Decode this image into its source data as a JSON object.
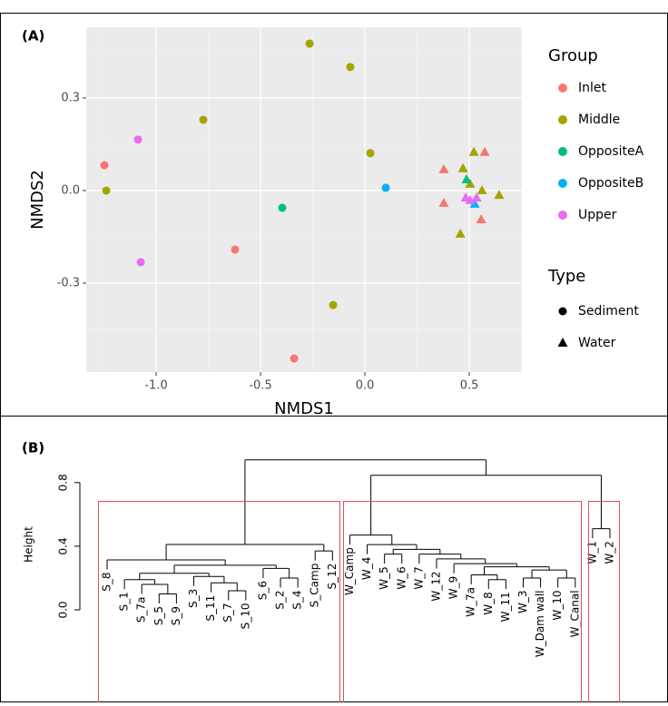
{
  "chart_data": [
    {
      "type": "scatter",
      "panel_label": "(A)",
      "x_label": "NMDS1",
      "y_label": "NMDS2",
      "xlim": [
        -1.335,
        0.752
      ],
      "ylim": [
        -0.588,
        0.529
      ],
      "xticks": [
        {
          "value": -1.0,
          "label": "-1.0"
        },
        -0.5,
        {
          "value": 0,
          "label": "0.0"
        },
        0.5
      ],
      "yticks": [
        -0.3,
        {
          "value": 0,
          "label": "0.0"
        },
        0.3
      ],
      "grid": true,
      "legend_title": "Group",
      "type_legend": {
        "title": "Type",
        "entries": [
          {
            "name": "Sediment",
            "shape": "circle"
          },
          {
            "name": "Water",
            "shape": "triangle"
          }
        ]
      },
      "series": [
        {
          "name": "Inlet",
          "color": "#F8766D",
          "x": [
            -1.248,
            -0.622,
            -0.339,
            0.378,
            0.574,
            0.378,
            0.557
          ],
          "values": [
            0.082,
            -0.191,
            -0.544,
            0.068,
            0.124,
            -0.041,
            -0.094
          ],
          "types": [
            "Sediment",
            "Sediment",
            "Sediment",
            "Water",
            "Water",
            "Water",
            "Water"
          ]
        },
        {
          "name": "Middle",
          "color": "#A3A500",
          "x": [
            -0.265,
            -0.07,
            -0.774,
            0.026,
            -1.239,
            -0.152,
            0.522,
            0.47,
            0.504,
            0.561,
            0.643,
            0.457
          ],
          "values": [
            0.476,
            0.4,
            0.229,
            0.121,
            0.0,
            -0.371,
            0.124,
            0.071,
            0.021,
            0.0,
            -0.015,
            -0.141
          ],
          "types": [
            "Sediment",
            "Sediment",
            "Sediment",
            "Sediment",
            "Sediment",
            "Sediment",
            "Water",
            "Water",
            "Water",
            "Water",
            "Water",
            "Water"
          ]
        },
        {
          "name": "OppositeA",
          "color": "#00BF7D",
          "x": [
            -0.396,
            0.487
          ],
          "values": [
            -0.056,
            0.035
          ],
          "types": [
            "Sediment",
            "Water"
          ]
        },
        {
          "name": "OppositeB",
          "color": "#00B0F6",
          "x": [
            0.1,
            0.526
          ],
          "values": [
            0.009,
            -0.044
          ],
          "types": [
            "Sediment",
            "Water"
          ]
        },
        {
          "name": "Upper",
          "color": "#E76BF3",
          "x": [
            -1.087,
            -1.074,
            0.483,
            0.535,
            0.504
          ],
          "values": [
            0.165,
            -0.232,
            -0.024,
            -0.024,
            -0.032
          ],
          "types": [
            "Sediment",
            "Sediment",
            "Water",
            "Water",
            "Water"
          ]
        }
      ]
    },
    {
      "type": "dendrogram",
      "panel_label": "(B)",
      "y_label": "Height",
      "ylim": [
        0,
        0.97
      ],
      "yticks": [
        {
          "value": 0,
          "label": "0.0"
        },
        0.4,
        0.8
      ],
      "tree": {
        "height": 0.943,
        "children": [
          {
            "height": 0.411,
            "children": [
              {
                "height": 0.314,
                "children": [
                  {
                    "label": "S_8"
                  },
                  {
                    "height": 0.28,
                    "children": [
                      {
                        "height": 0.23,
                        "children": [
                          {
                            "height": 0.19,
                            "children": [
                              {
                                "label": "S_1"
                              },
                              {
                                "height": 0.16,
                                "children": [
                                  {
                                    "label": "S_7a"
                                  },
                                  {
                                    "height": 0.1,
                                    "children": [
                                      {
                                        "label": "S_5"
                                      },
                                      {
                                        "label": "S_9"
                                      }
                                    ]
                                  }
                                ]
                              }
                            ]
                          },
                          {
                            "height": 0.21,
                            "children": [
                              {
                                "label": "S_3"
                              },
                              {
                                "height": 0.17,
                                "children": [
                                  {
                                    "label": "S_11"
                                  },
                                  {
                                    "height": 0.12,
                                    "children": [
                                      {
                                        "label": "S_7"
                                      },
                                      {
                                        "label": "S_10"
                                      }
                                    ]
                                  }
                                ]
                              }
                            ]
                          }
                        ]
                      },
                      {
                        "height": 0.26,
                        "children": [
                          {
                            "label": "S_6"
                          },
                          {
                            "height": 0.2,
                            "children": [
                              {
                                "label": "S_2"
                              },
                              {
                                "label": "S_4"
                              }
                            ]
                          }
                        ]
                      }
                    ]
                  }
                ]
              },
              {
                "height": 0.37,
                "children": [
                  {
                    "label": "S_Camp"
                  },
                  {
                    "label": "S_12"
                  }
                ]
              }
            ]
          },
          {
            "height": 0.846,
            "children": [
              {
                "height": 0.47,
                "children": [
                  {
                    "label": "W_Camp"
                  },
                  {
                    "height": 0.41,
                    "children": [
                      {
                        "label": "W_4"
                      },
                      {
                        "height": 0.38,
                        "children": [
                          {
                            "height": 0.35,
                            "children": [
                              {
                                "label": "W_5"
                              },
                              {
                                "label": "W_6"
                              }
                            ]
                          },
                          {
                            "height": 0.35,
                            "children": [
                              {
                                "label": "W_7"
                              },
                              {
                                "height": 0.32,
                                "children": [
                                  {
                                    "label": "W_12"
                                  },
                                  {
                                    "height": 0.29,
                                    "children": [
                                      {
                                        "label": "W_9"
                                      },
                                      {
                                        "height": 0.27,
                                        "children": [
                                          {
                                            "height": 0.22,
                                            "children": [
                                              {
                                                "label": "W_7a"
                                              },
                                              {
                                                "height": 0.19,
                                                "children": [
                                                  {
                                                    "label": "W_8"
                                                  },
                                                  {
                                                    "label": "W_11"
                                                  }
                                                ]
                                              }
                                            ]
                                          },
                                          {
                                            "height": 0.25,
                                            "children": [
                                              {
                                                "height": 0.2,
                                                "children": [
                                                  {
                                                    "label": "W_3"
                                                  },
                                                  {
                                                    "label": "W_Dam wall"
                                                  }
                                                ]
                                              },
                                              {
                                                "height": 0.2,
                                                "children": [
                                                  {
                                                    "label": "W_10"
                                                  },
                                                  {
                                                    "label": "W_Canal"
                                                  }
                                                ]
                                              }
                                            ]
                                          }
                                        ]
                                      }
                                    ]
                                  }
                                ]
                              }
                            ]
                          }
                        ]
                      }
                    ]
                  }
                ]
              },
              {
                "height": 0.51,
                "children": [
                  {
                    "label": "W_1"
                  },
                  {
                    "label": "W_2"
                  }
                ]
              }
            ]
          }
        ]
      }
    }
  ]
}
